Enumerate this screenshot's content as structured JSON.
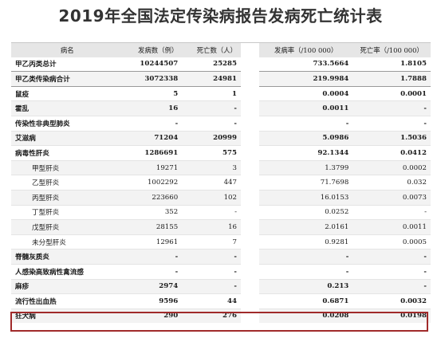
{
  "title": "2019年全国法定传染病报告发病死亡统计表",
  "headers": {
    "name": "病名",
    "cases": "发病数（例）",
    "deaths": "死亡数（人）",
    "incidence": "发病率（/100 000）",
    "mortality": "死亡率（/100 000）"
  },
  "rows": [
    {
      "name": "甲乙丙类总计",
      "cases": "10244507",
      "deaths": "25285",
      "incidence": "733.5664",
      "mortality": "1.8105",
      "bold": true,
      "sum": true
    },
    {
      "name": "甲乙类传染病合计",
      "cases": "3072338",
      "deaths": "24981",
      "incidence": "219.9984",
      "mortality": "1.7888",
      "bold": true,
      "sum": true
    },
    {
      "name": "鼠疫",
      "cases": "5",
      "deaths": "1",
      "incidence": "0.0004",
      "mortality": "0.0001",
      "bold": true
    },
    {
      "name": "霍乱",
      "cases": "16",
      "deaths": "-",
      "incidence": "0.0011",
      "mortality": "-",
      "bold": true
    },
    {
      "name": "传染性非典型肺炎",
      "cases": "-",
      "deaths": "-",
      "incidence": "-",
      "mortality": "-",
      "bold": true
    },
    {
      "name": "艾滋病",
      "cases": "71204",
      "deaths": "20999",
      "incidence": "5.0986",
      "mortality": "1.5036",
      "bold": true
    },
    {
      "name": "病毒性肝炎",
      "cases": "1286691",
      "deaths": "575",
      "incidence": "92.1344",
      "mortality": "0.0412",
      "bold": true
    },
    {
      "name": "甲型肝炎",
      "cases": "19271",
      "deaths": "3",
      "incidence": "1.3799",
      "mortality": "0.0002",
      "indent": true
    },
    {
      "name": "乙型肝炎",
      "cases": "1002292",
      "deaths": "447",
      "incidence": "71.7698",
      "mortality": "0.032",
      "indent": true
    },
    {
      "name": "丙型肝炎",
      "cases": "223660",
      "deaths": "102",
      "incidence": "16.0153",
      "mortality": "0.0073",
      "indent": true
    },
    {
      "name": "丁型肝炎",
      "cases": "352",
      "deaths": "-",
      "incidence": "0.0252",
      "mortality": "-",
      "indent": true
    },
    {
      "name": "戊型肝炎",
      "cases": "28155",
      "deaths": "16",
      "incidence": "2.0161",
      "mortality": "0.0011",
      "indent": true
    },
    {
      "name": "未分型肝炎",
      "cases": "12961",
      "deaths": "7",
      "incidence": "0.9281",
      "mortality": "0.0005",
      "indent": true
    },
    {
      "name": "脊髓灰质炎",
      "cases": "-",
      "deaths": "-",
      "incidence": "-",
      "mortality": "-",
      "bold": true
    },
    {
      "name": "人感染高致病性禽流感",
      "cases": "-",
      "deaths": "-",
      "incidence": "-",
      "mortality": "-",
      "bold": true
    },
    {
      "name": "麻疹",
      "cases": "2974",
      "deaths": "-",
      "incidence": "0.213",
      "mortality": "-",
      "bold": true
    },
    {
      "name": "流行性出血热",
      "cases": "9596",
      "deaths": "44",
      "incidence": "0.6871",
      "mortality": "0.0032",
      "bold": true
    },
    {
      "name": "狂犬病",
      "cases": "290",
      "deaths": "276",
      "incidence": "0.0208",
      "mortality": "0.0198",
      "bold": true,
      "highlighted": true
    }
  ],
  "colors": {
    "highlight_border": "#a02a2a",
    "header_bg": "#e6e6e6"
  }
}
